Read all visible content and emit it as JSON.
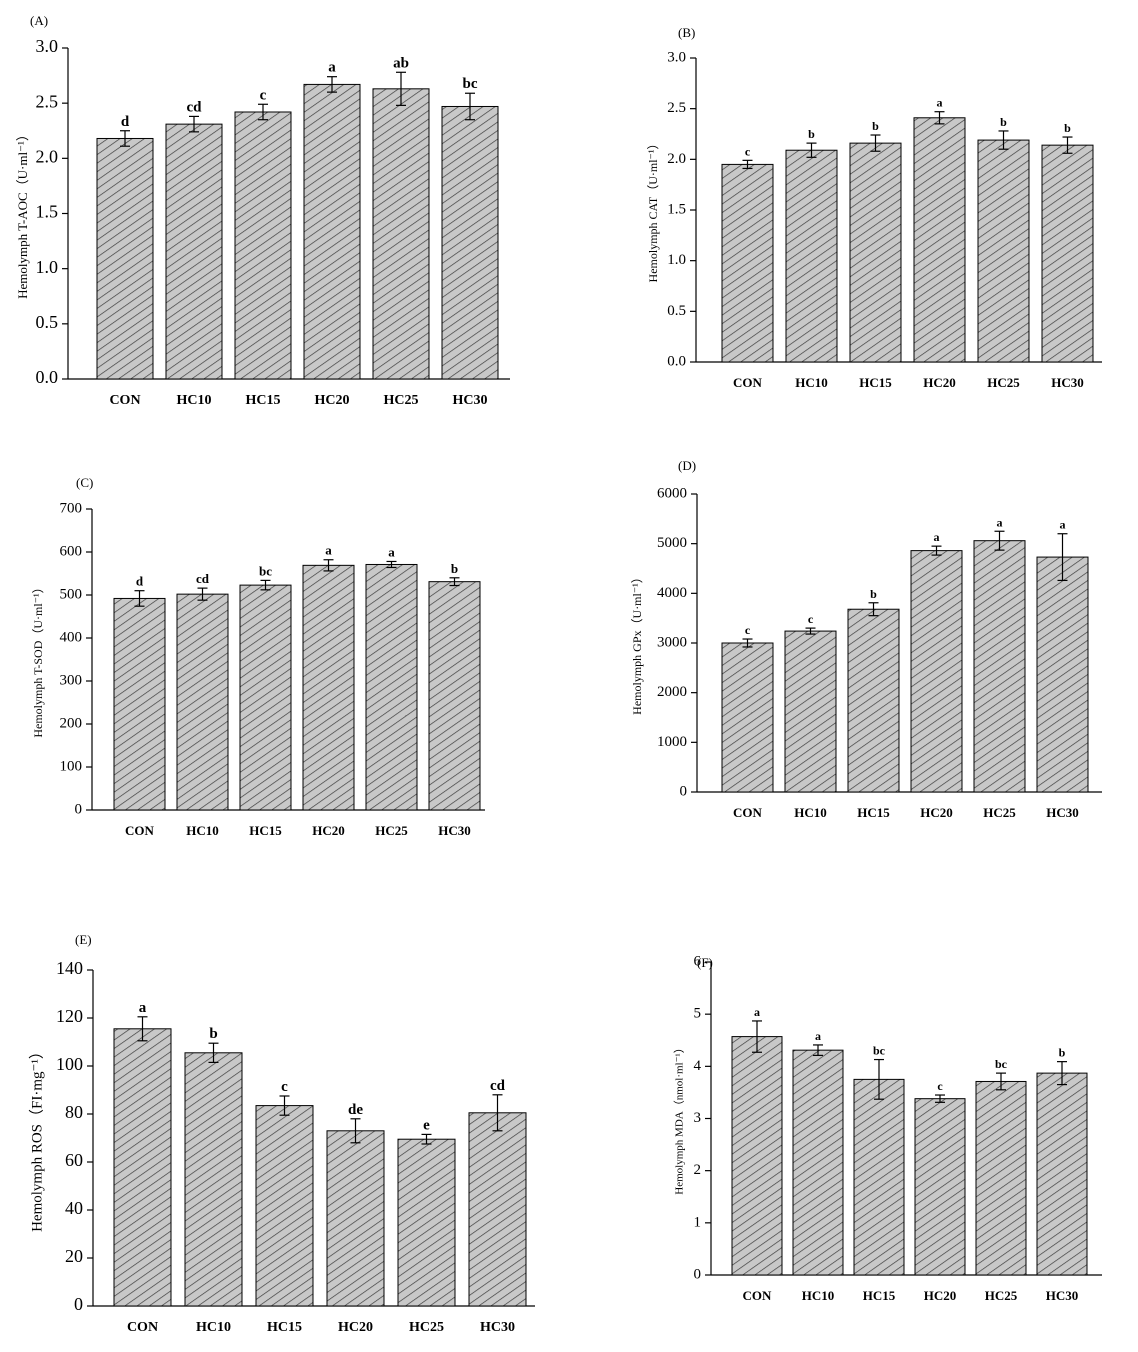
{
  "chart_data": [
    {
      "panel": "(A)",
      "type": "bar",
      "categories": [
        "CON",
        "HC10",
        "HC15",
        "HC20",
        "HC25",
        "HC30"
      ],
      "values": [
        2.18,
        2.31,
        2.42,
        2.67,
        2.63,
        2.47
      ],
      "errors": [
        0.07,
        0.07,
        0.07,
        0.07,
        0.15,
        0.12
      ],
      "letters": [
        "d",
        "cd",
        "c",
        "a",
        "ab",
        "bc"
      ],
      "ylabel": "Hemolymph T-AOC（U·ml⁻¹）",
      "ylim": [
        0,
        3.0
      ],
      "yticks": [
        "0.0",
        "0.5",
        "1.0",
        "1.5",
        "2.0",
        "2.5",
        "3.0"
      ]
    },
    {
      "panel": "(B)",
      "type": "bar",
      "categories": [
        "CON",
        "HC10",
        "HC15",
        "HC20",
        "HC25",
        "HC30"
      ],
      "values": [
        1.95,
        2.09,
        2.16,
        2.41,
        2.19,
        2.14
      ],
      "errors": [
        0.04,
        0.07,
        0.08,
        0.06,
        0.09,
        0.08
      ],
      "letters": [
        "c",
        "b",
        "b",
        "a",
        "b",
        "b"
      ],
      "ylabel": "Hemolymph CAT（U·ml⁻¹）",
      "ylim": [
        0,
        3.0
      ],
      "yticks": [
        "0.0",
        "0.5",
        "1.0",
        "1.5",
        "2.0",
        "2.5",
        "3.0"
      ]
    },
    {
      "panel": "(C)",
      "type": "bar",
      "categories": [
        "CON",
        "HC10",
        "HC15",
        "HC20",
        "HC25",
        "HC30"
      ],
      "values": [
        492,
        502,
        523,
        569,
        571,
        531
      ],
      "errors": [
        18,
        14,
        11,
        13,
        7,
        9
      ],
      "letters": [
        "d",
        "cd",
        "bc",
        "a",
        "a",
        "b"
      ],
      "ylabel": "Hemolymph T-SOD（U·ml⁻¹）",
      "ylim": [
        0,
        700
      ],
      "yticks": [
        "0",
        "100",
        "200",
        "300",
        "400",
        "500",
        "600",
        "700"
      ]
    },
    {
      "panel": "(D)",
      "type": "bar",
      "categories": [
        "CON",
        "HC10",
        "HC15",
        "HC20",
        "HC25",
        "HC30"
      ],
      "values": [
        3000,
        3240,
        3680,
        4860,
        5060,
        4730
      ],
      "errors": [
        80,
        60,
        130,
        90,
        190,
        470
      ],
      "letters": [
        "c",
        "c",
        "b",
        "a",
        "a",
        "a"
      ],
      "ylabel": "Hemolymph GPx（U·ml⁻¹）",
      "ylim": [
        0,
        6000
      ],
      "yticks": [
        "0",
        "1000",
        "2000",
        "3000",
        "4000",
        "5000",
        "6000"
      ]
    },
    {
      "panel": "(E)",
      "type": "bar",
      "categories": [
        "CON",
        "HC10",
        "HC15",
        "HC20",
        "HC25",
        "HC30"
      ],
      "values": [
        115.5,
        105.5,
        83.5,
        73.0,
        69.5,
        80.5
      ],
      "errors": [
        5.0,
        4.0,
        4.0,
        5.0,
        2.0,
        7.5
      ],
      "letters": [
        "a",
        "b",
        "c",
        "de",
        "e",
        "cd"
      ],
      "ylabel": "Hemolymph ROS（FI·mg⁻¹）",
      "ylim": [
        0,
        140
      ],
      "yticks": [
        "0",
        "20",
        "40",
        "60",
        "80",
        "100",
        "120",
        "140"
      ]
    },
    {
      "panel": "(F)",
      "type": "bar",
      "categories": [
        "CON",
        "HC10",
        "HC15",
        "HC20",
        "HC25",
        "HC30"
      ],
      "values": [
        4.57,
        4.31,
        3.75,
        3.38,
        3.71,
        3.87
      ],
      "errors": [
        0.3,
        0.1,
        0.38,
        0.07,
        0.16,
        0.22
      ],
      "letters": [
        "a",
        "a",
        "bc",
        "c",
        "bc",
        "b"
      ],
      "ylabel": "Hemolymph MDA（nmol·ml⁻¹）",
      "ylim": [
        0,
        6
      ],
      "yticks": [
        "0",
        "1",
        "2",
        "3",
        "4",
        "5",
        "6"
      ]
    }
  ]
}
